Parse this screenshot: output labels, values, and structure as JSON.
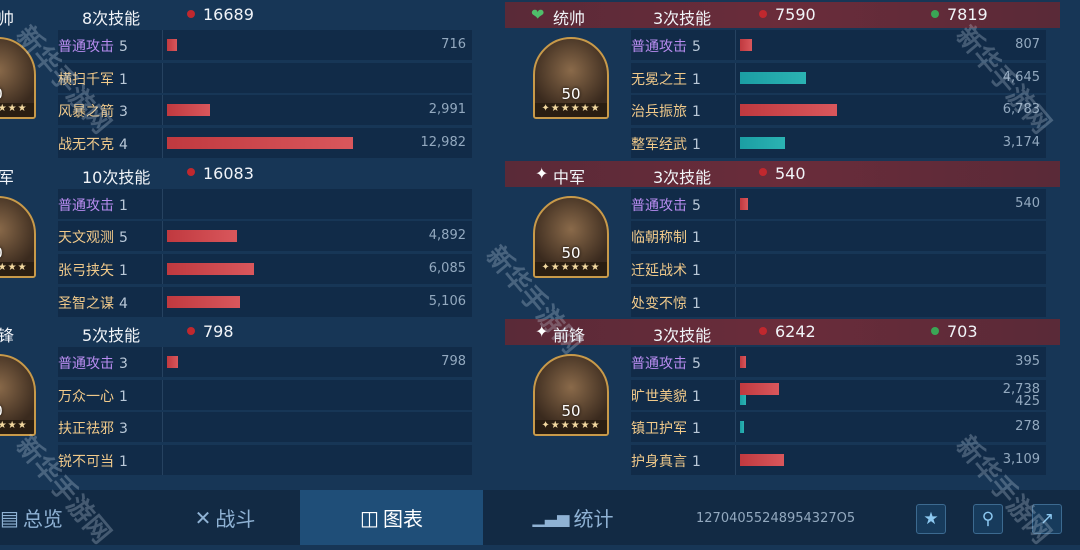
{
  "colors": {
    "damage": "#c8464c",
    "heal": "#1fa5a5",
    "red_dot": "#c0282e",
    "green_dot": "#3aa655",
    "maroon_header": "#5f2b39"
  },
  "left": [
    {
      "role": "帅",
      "casts": "8次技能",
      "damage": "16689",
      "heal": "",
      "level": "0",
      "skills": [
        {
          "name": "普通攻击",
          "count": "5",
          "attack": true,
          "dmg": 716,
          "dmg_label": "716"
        },
        {
          "name": "横扫千军",
          "count": "1"
        },
        {
          "name": "风暴之箭",
          "count": "3",
          "dmg": 2991,
          "dmg_label": "2,991"
        },
        {
          "name": "战无不克",
          "count": "4",
          "dmg": 12982,
          "dmg_label": "12,982"
        }
      ]
    },
    {
      "role": "军",
      "casts": "10次技能",
      "damage": "16083",
      "heal": "",
      "level": "0",
      "skills": [
        {
          "name": "普通攻击",
          "count": "1",
          "attack": true
        },
        {
          "name": "天文观测",
          "count": "5",
          "dmg": 4892,
          "dmg_label": "4,892"
        },
        {
          "name": "张弓挟矢",
          "count": "1",
          "dmg": 6085,
          "dmg_label": "6,085"
        },
        {
          "name": "圣智之谋",
          "count": "4",
          "dmg": 5106,
          "dmg_label": "5,106"
        }
      ]
    },
    {
      "role": "锋",
      "casts": "5次技能",
      "damage": "798",
      "heal": "",
      "level": "0",
      "skills": [
        {
          "name": "普通攻击",
          "count": "3",
          "attack": true,
          "dmg": 798,
          "dmg_label": "798"
        },
        {
          "name": "万众一心",
          "count": "1"
        },
        {
          "name": "扶正祛邪",
          "count": "3"
        },
        {
          "name": "锐不可当",
          "count": "1"
        }
      ]
    }
  ],
  "right": [
    {
      "role": "统帅",
      "role_icon": "heart-shield-icon",
      "casts": "3次技能",
      "damage": "7590",
      "heal": "7819",
      "level": "50",
      "skills": [
        {
          "name": "普通攻击",
          "count": "5",
          "attack": true,
          "dmg": 807,
          "dmg_label": "807"
        },
        {
          "name": "无冕之王",
          "count": "1",
          "heal": 4645,
          "heal_label": "4,645"
        },
        {
          "name": "治兵振旅",
          "count": "1",
          "dmg": 6783,
          "dmg_label": "6,783"
        },
        {
          "name": "整军经武",
          "count": "1",
          "heal": 3174,
          "heal_label": "3,174"
        }
      ]
    },
    {
      "role": "中军",
      "role_icon": "sparkle-icon",
      "casts": "3次技能",
      "damage": "540",
      "heal": "",
      "level": "50",
      "skills": [
        {
          "name": "普通攻击",
          "count": "5",
          "attack": true,
          "dmg": 540,
          "dmg_label": "540"
        },
        {
          "name": "临朝称制",
          "count": "1"
        },
        {
          "name": "迁延战术",
          "count": "1"
        },
        {
          "name": "处变不惊",
          "count": "1"
        }
      ]
    },
    {
      "role": "前锋",
      "role_icon": "sparkle-icon",
      "casts": "3次技能",
      "damage": "6242",
      "heal": "703",
      "level": "50",
      "skills": [
        {
          "name": "普通攻击",
          "count": "5",
          "attack": true,
          "dmg": 395,
          "dmg_label": "395"
        },
        {
          "name": "旷世美貌",
          "count": "1",
          "dmg": 2738,
          "dmg_label": "2,738",
          "heal": 425,
          "heal_label": "425"
        },
        {
          "name": "镇卫护军",
          "count": "1",
          "heal": 278,
          "heal_label": "278"
        },
        {
          "name": "护身真言",
          "count": "1",
          "dmg": 3109,
          "dmg_label": "3,109"
        }
      ]
    }
  ],
  "bottom": {
    "tabs": [
      {
        "label": "总览",
        "icon": "overview-icon"
      },
      {
        "label": "战斗",
        "icon": "crossed-swords-icon"
      },
      {
        "label": "图表",
        "icon": "chart-icon",
        "active": true
      },
      {
        "label": "统计",
        "icon": "bar-stats-icon"
      }
    ],
    "battle_id": "12704055248954327O5",
    "buttons": [
      "star-icon",
      "location-pin-icon",
      "share-icon"
    ]
  },
  "watermark": "新华手游网"
}
